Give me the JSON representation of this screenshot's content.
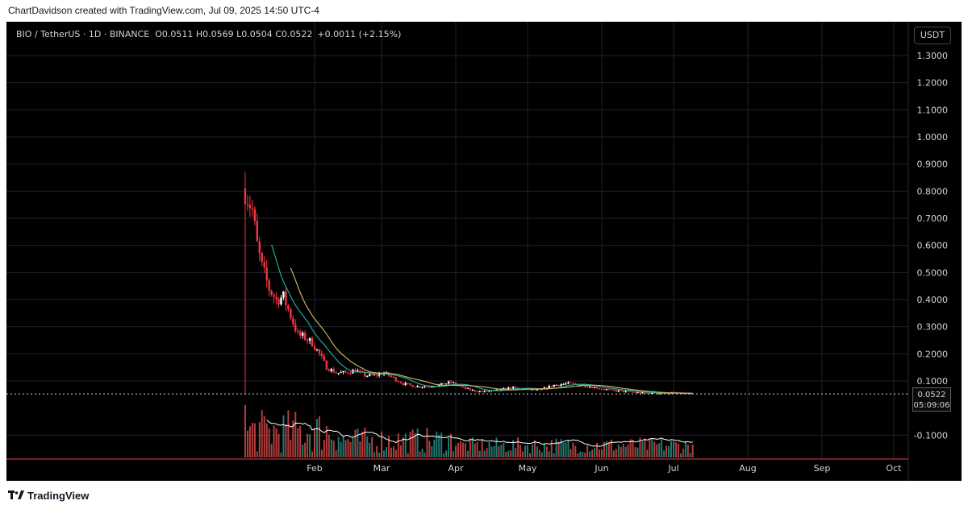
{
  "header": {
    "attribution": "ChartDavidson created with TradingView.com, Jul 09, 2025 14:50 UTC-4"
  },
  "legend": {
    "symbol": "BIO / TetherUS · 1D · BINANCE",
    "ohlc": "O0.0511  H0.0569  L0.0504  C0.0522",
    "change": "+0.0011 (+2.15%)"
  },
  "currency_button": "USDT",
  "price_label": {
    "price": "0.0522",
    "countdown": "05:09:06"
  },
  "footer": {
    "brand": "TradingView"
  },
  "colors": {
    "background": "#000000",
    "grid": "#1e222d",
    "up": "#ffffff",
    "down": "#f23645",
    "ma_fast": "#22ab94",
    "ma_slow": "#c9b35a",
    "volume_ma": "#ffffff",
    "volume_up": "#26a69a",
    "volume_down": "#ef5350"
  },
  "chart_data": {
    "type": "candlestick",
    "symbol": "BIO / TetherUS",
    "interval": "1D",
    "exchange": "BINANCE",
    "y_axis": {
      "ticks": [
        "1.3000",
        "1.2000",
        "1.1000",
        "1.0000",
        "0.9000",
        "0.8000",
        "0.7000",
        "0.6000",
        "0.5000",
        "0.4000",
        "0.3000",
        "0.2000",
        "0.1000",
        "-0.1000"
      ],
      "range": [
        -0.16,
        1.36
      ]
    },
    "x_axis": {
      "ticks": [
        "Feb",
        "Mar",
        "Apr",
        "May",
        "Jun",
        "Jul",
        "Aug",
        "Sep",
        "Oct"
      ]
    },
    "last_price": 0.0522,
    "series": [
      {
        "kind": "price",
        "points": [
          {
            "date": "2025-01-03",
            "close": 0.8
          },
          {
            "date": "2025-01-06",
            "close": 0.73
          },
          {
            "date": "2025-01-08",
            "close": 0.6
          },
          {
            "date": "2025-01-10",
            "close": 0.52
          },
          {
            "date": "2025-01-13",
            "close": 0.44
          },
          {
            "date": "2025-01-16",
            "close": 0.4
          },
          {
            "date": "2025-01-19",
            "close": 0.41
          },
          {
            "date": "2025-01-22",
            "close": 0.34
          },
          {
            "date": "2025-01-25",
            "close": 0.27
          },
          {
            "date": "2025-01-28",
            "close": 0.26
          },
          {
            "date": "2025-01-31",
            "close": 0.24
          },
          {
            "date": "2025-02-03",
            "close": 0.2
          },
          {
            "date": "2025-02-06",
            "close": 0.15
          },
          {
            "date": "2025-02-10",
            "close": 0.13
          },
          {
            "date": "2025-02-14",
            "close": 0.13
          },
          {
            "date": "2025-02-18",
            "close": 0.14
          },
          {
            "date": "2025-02-22",
            "close": 0.12
          },
          {
            "date": "2025-02-26",
            "close": 0.12
          },
          {
            "date": "2025-03-02",
            "close": 0.13
          },
          {
            "date": "2025-03-06",
            "close": 0.11
          },
          {
            "date": "2025-03-10",
            "close": 0.09
          },
          {
            "date": "2025-03-15",
            "close": 0.08
          },
          {
            "date": "2025-03-20",
            "close": 0.08
          },
          {
            "date": "2025-03-25",
            "close": 0.085
          },
          {
            "date": "2025-03-30",
            "close": 0.095
          },
          {
            "date": "2025-04-04",
            "close": 0.075
          },
          {
            "date": "2025-04-08",
            "close": 0.065
          },
          {
            "date": "2025-04-12",
            "close": 0.06
          },
          {
            "date": "2025-04-18",
            "close": 0.065
          },
          {
            "date": "2025-04-24",
            "close": 0.075
          },
          {
            "date": "2025-04-30",
            "close": 0.07
          },
          {
            "date": "2025-05-06",
            "close": 0.065
          },
          {
            "date": "2025-05-12",
            "close": 0.085
          },
          {
            "date": "2025-05-18",
            "close": 0.09
          },
          {
            "date": "2025-05-24",
            "close": 0.085
          },
          {
            "date": "2025-05-30",
            "close": 0.075
          },
          {
            "date": "2025-06-05",
            "close": 0.065
          },
          {
            "date": "2025-06-12",
            "close": 0.06
          },
          {
            "date": "2025-06-18",
            "close": 0.055
          },
          {
            "date": "2025-06-25",
            "close": 0.055
          },
          {
            "date": "2025-07-01",
            "close": 0.055
          },
          {
            "date": "2025-07-09",
            "close": 0.0522
          }
        ]
      }
    ]
  }
}
